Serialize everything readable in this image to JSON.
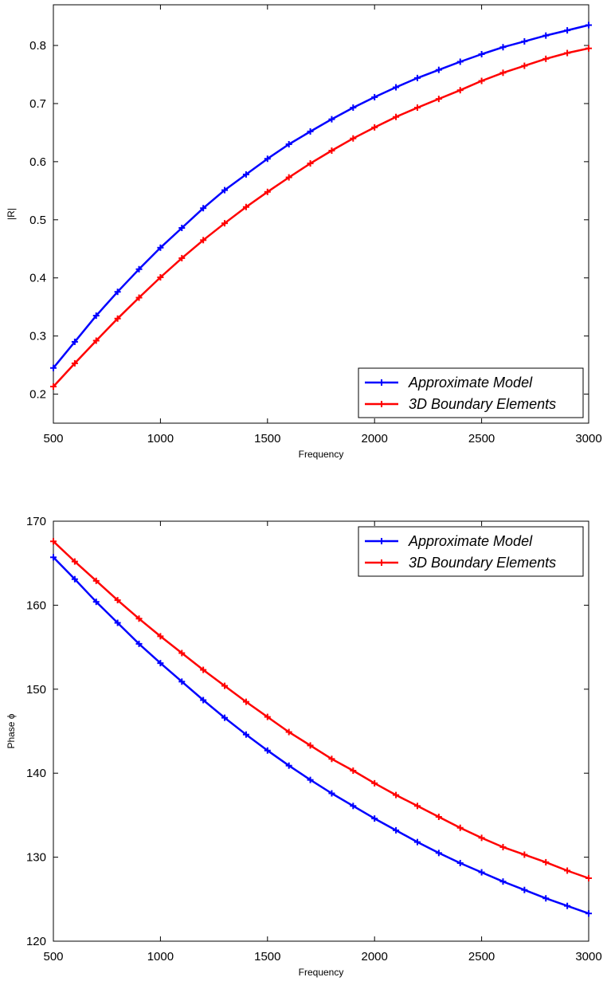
{
  "chart_data": [
    {
      "type": "line",
      "title": "",
      "xlabel": "Frequency",
      "ylabel": "|R|",
      "xlim": [
        500,
        3000
      ],
      "ylim": [
        0.15,
        0.87
      ],
      "xticks": [
        500,
        1000,
        1500,
        2000,
        2500,
        3000
      ],
      "yticks": [
        0.2,
        0.3,
        0.4,
        0.5,
        0.6,
        0.7,
        0.8
      ],
      "ytick_labels": [
        "0.2",
        "0.3",
        "0.4",
        "0.5",
        "0.6",
        "0.7",
        "0.8"
      ],
      "grid": false,
      "legend_position": "bottom-right",
      "x": [
        500,
        600,
        700,
        800,
        900,
        1000,
        1100,
        1200,
        1300,
        1400,
        1500,
        1600,
        1700,
        1800,
        1900,
        2000,
        2100,
        2200,
        2300,
        2400,
        2500,
        2600,
        2700,
        2800,
        2900,
        3000
      ],
      "series": [
        {
          "name": "Approximate Model",
          "color": "#0000ff",
          "values": [
            0.245,
            0.29,
            0.335,
            0.376,
            0.415,
            0.452,
            0.486,
            0.52,
            0.551,
            0.578,
            0.605,
            0.63,
            0.652,
            0.673,
            0.693,
            0.711,
            0.728,
            0.744,
            0.758,
            0.772,
            0.785,
            0.797,
            0.807,
            0.817,
            0.826,
            0.835
          ]
        },
        {
          "name": "3D Boundary Elements",
          "color": "#ff0000",
          "values": [
            0.213,
            0.253,
            0.292,
            0.33,
            0.366,
            0.401,
            0.434,
            0.465,
            0.494,
            0.522,
            0.548,
            0.573,
            0.597,
            0.619,
            0.64,
            0.659,
            0.677,
            0.693,
            0.708,
            0.723,
            0.739,
            0.753,
            0.765,
            0.777,
            0.787,
            0.795
          ]
        }
      ]
    },
    {
      "type": "line",
      "title": "",
      "xlabel": "Frequency",
      "ylabel": "Phase ϕ",
      "xlim": [
        500,
        3000
      ],
      "ylim": [
        120,
        170
      ],
      "xticks": [
        500,
        1000,
        1500,
        2000,
        2500,
        3000
      ],
      "yticks": [
        120,
        130,
        140,
        150,
        160,
        170
      ],
      "ytick_labels": [
        "120",
        "130",
        "140",
        "150",
        "160",
        "170"
      ],
      "grid": false,
      "legend_position": "top-right",
      "x": [
        500,
        600,
        700,
        800,
        900,
        1000,
        1100,
        1200,
        1300,
        1400,
        1500,
        1600,
        1700,
        1800,
        1900,
        2000,
        2100,
        2200,
        2300,
        2400,
        2500,
        2600,
        2700,
        2800,
        2900,
        3000
      ],
      "series": [
        {
          "name": "Approximate Model",
          "color": "#0000ff",
          "values": [
            165.7,
            163.1,
            160.4,
            157.9,
            155.4,
            153.1,
            150.9,
            148.7,
            146.6,
            144.6,
            142.7,
            140.9,
            139.2,
            137.6,
            136.1,
            134.6,
            133.2,
            131.8,
            130.5,
            129.3,
            128.2,
            127.1,
            126.1,
            125.1,
            124.2,
            123.3
          ]
        },
        {
          "name": "3D Boundary Elements",
          "color": "#ff0000",
          "values": [
            167.6,
            165.2,
            162.9,
            160.6,
            158.4,
            156.3,
            154.3,
            152.3,
            150.4,
            148.5,
            146.7,
            144.9,
            143.3,
            141.7,
            140.3,
            138.8,
            137.4,
            136.1,
            134.8,
            133.5,
            132.3,
            131.2,
            130.3,
            129.4,
            128.4,
            127.5
          ]
        }
      ]
    }
  ]
}
